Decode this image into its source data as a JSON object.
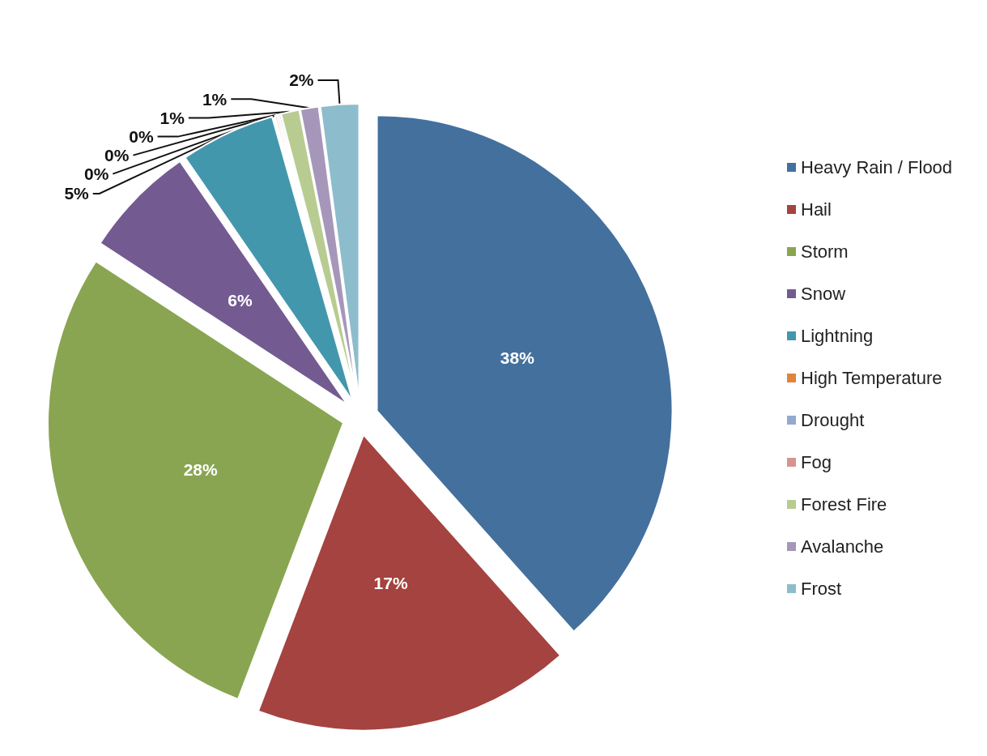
{
  "chart_data": {
    "type": "pie",
    "categories": [
      "Heavy Rain / Flood",
      "Hail",
      "Storm",
      "Snow",
      "Lightning",
      "High Temperature",
      "Drought",
      "Fog",
      "Forest Fire",
      "Avalanche",
      "Frost"
    ],
    "values": [
      38.4,
      17.4,
      28.4,
      6.2,
      5.2,
      0.1,
      0.1,
      0.1,
      1.0,
      1.0,
      2.1
    ],
    "value_labels": [
      "38%",
      "17%",
      "28%",
      "6%",
      "5%",
      "0%",
      "0%",
      "0%",
      "1%",
      "1%",
      "2%"
    ],
    "colors": [
      "#44709d",
      "#a4433f",
      "#89a551",
      "#735b91",
      "#4397ad",
      "#e0853b",
      "#93a9d0",
      "#d49492",
      "#b8cc91",
      "#a697ba",
      "#8dbdcc"
    ],
    "legend": "right"
  }
}
